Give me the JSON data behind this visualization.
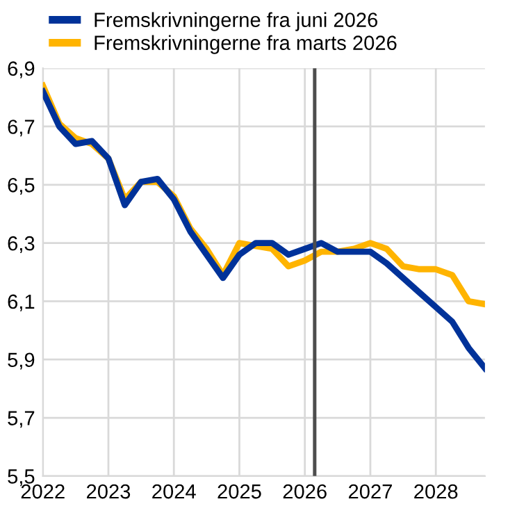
{
  "chart_data": {
    "type": "line",
    "x": [
      2022,
      2022.25,
      2022.5,
      2022.75,
      2023,
      2023.25,
      2023.5,
      2023.75,
      2024,
      2024.25,
      2024.5,
      2024.75,
      2025,
      2025.25,
      2025.5,
      2025.75,
      2026,
      2026.25,
      2026.5,
      2026.75,
      2027,
      2027.25,
      2027.5,
      2027.75,
      2028,
      2028.25,
      2028.5,
      2028.75
    ],
    "series": [
      {
        "name": "Fremskrivningerne fra marts 2026",
        "color": "#ffb400",
        "values": [
          6.84,
          6.71,
          6.66,
          6.64,
          6.59,
          6.45,
          6.51,
          6.51,
          6.46,
          6.35,
          6.28,
          6.19,
          6.3,
          6.29,
          6.28,
          6.22,
          6.24,
          6.27,
          6.27,
          6.28,
          6.3,
          6.28,
          6.22,
          6.21,
          6.21,
          6.19,
          6.1,
          6.09
        ]
      },
      {
        "name": "Fremskrivningerne fra juni 2026",
        "color": "#003299",
        "values": [
          6.82,
          6.7,
          6.64,
          6.65,
          6.59,
          6.43,
          6.51,
          6.52,
          6.45,
          6.34,
          6.26,
          6.18,
          6.26,
          6.3,
          6.3,
          6.26,
          6.28,
          6.3,
          6.27,
          6.27,
          6.27,
          6.23,
          6.18,
          6.13,
          6.08,
          6.03,
          5.94,
          5.87
        ]
      }
    ],
    "xlim": [
      2022,
      2028.75
    ],
    "xticks": [
      2022,
      2023,
      2024,
      2025,
      2026,
      2027,
      2028
    ],
    "ylim": [
      5.5,
      6.9
    ],
    "yticks": [
      {
        "value": 5.5,
        "label": "5,5"
      },
      {
        "value": 5.7,
        "label": "5,7"
      },
      {
        "value": 5.9,
        "label": "5,9"
      },
      {
        "value": 6.1,
        "label": "6,1"
      },
      {
        "value": 6.3,
        "label": "6,3"
      },
      {
        "value": 6.5,
        "label": "6,5"
      },
      {
        "value": 6.7,
        "label": "6,7"
      },
      {
        "value": 6.9,
        "label": "6,9"
      }
    ],
    "ref_lines": [
      {
        "axis": "x",
        "value": 2026.15,
        "label": null,
        "color": "#4d4d4d"
      }
    ],
    "grid": true,
    "legend": "top left",
    "line_style": "solid",
    "marker": "none"
  }
}
